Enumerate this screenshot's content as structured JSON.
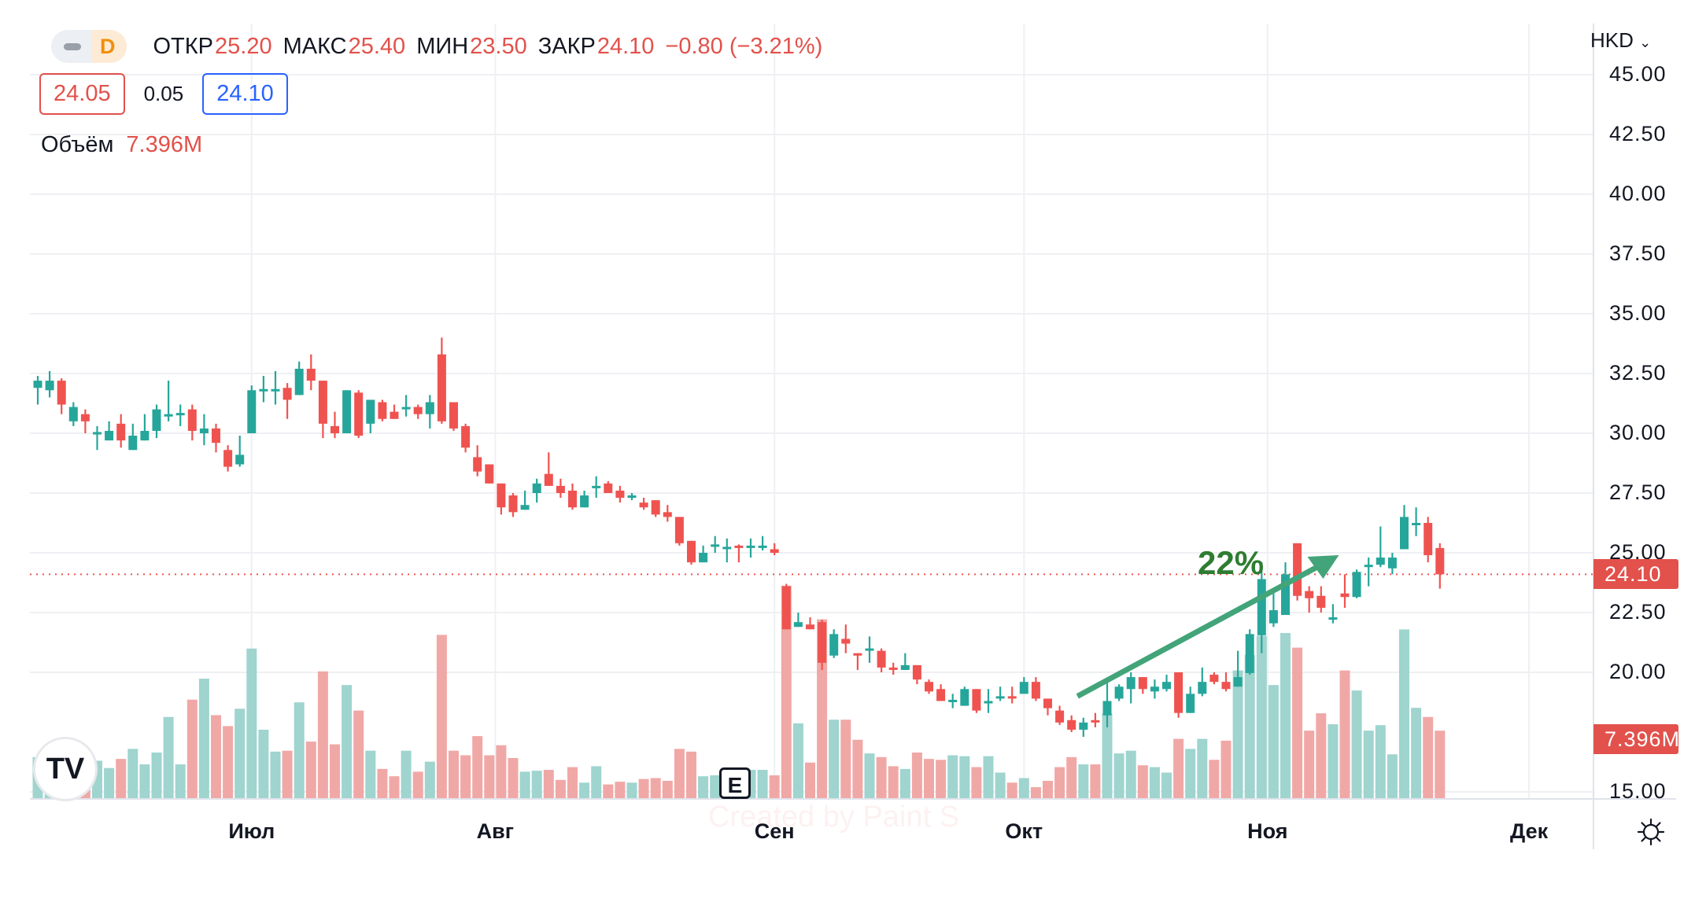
{
  "header": {
    "interval": "D",
    "open_label": "ОТКР",
    "open": "25.20",
    "high_label": "МАКС",
    "high": "25.40",
    "low_label": "МИН",
    "low": "23.50",
    "close_label": "ЗАКР",
    "close": "24.10",
    "change": "−0.80 (−3.21%)",
    "bid": "24.05",
    "spread": "0.05",
    "ask": "24.10",
    "volume_label": "Объём",
    "volume": "7.396M"
  },
  "currency": "HKD",
  "last_price_tag": "24.10",
  "last_volume_tag": "7.396M",
  "annotation": {
    "text": "22%"
  },
  "earnings_marker": "E",
  "logo": "TV",
  "watermark": "Created by Paint S",
  "colors": {
    "up": "#26a69a",
    "down": "#ef5350",
    "up_vol": "#9fd4cf",
    "down_vol": "#f0a8a6",
    "arrow": "#43a47a",
    "grid": "#eff0f3"
  },
  "chart_data": {
    "type": "candlestick",
    "ylabel": "HKD",
    "ylim": [
      15,
      45
    ],
    "yticks": [
      "45.00",
      "42.50",
      "40.00",
      "37.50",
      "35.00",
      "32.50",
      "30.00",
      "27.50",
      "25.00",
      "22.50",
      "20.00",
      "15.00"
    ],
    "ytick_values": [
      45,
      42.5,
      40,
      37.5,
      35,
      32.5,
      30,
      27.5,
      25,
      22.5,
      20,
      15
    ],
    "months": [
      {
        "label": "Июл",
        "index": 18
      },
      {
        "label": "Авг",
        "index": 38.5
      },
      {
        "label": "Сен",
        "index": 62
      },
      {
        "label": "Окт",
        "index": 83
      },
      {
        "label": "Ноя",
        "index": 103.5
      },
      {
        "label": "Дек",
        "index": 125.5
      }
    ],
    "last_price": 24.1,
    "arrow": {
      "from_index": 87.5,
      "from_price": 19.0,
      "to_index": 109.5,
      "to_price": 24.9
    },
    "earnings_index": 58,
    "candles_ohlcv": [
      [
        31.9,
        32.4,
        31.2,
        32.2,
        4.5
      ],
      [
        31.8,
        32.6,
        31.5,
        32.2,
        3.8
      ],
      [
        32.2,
        32.3,
        30.8,
        31.2,
        4
      ],
      [
        30.5,
        31.3,
        30.3,
        31.1,
        4
      ],
      [
        30.8,
        31.0,
        30.0,
        30.5,
        3.8
      ],
      [
        30.0,
        30.3,
        29.3,
        30.05,
        4.1
      ],
      [
        29.7,
        30.5,
        29.7,
        30.1,
        3.3
      ],
      [
        30.4,
        30.8,
        29.4,
        29.7,
        4.3
      ],
      [
        29.3,
        30.4,
        29.3,
        29.9,
        5.4
      ],
      [
        29.7,
        30.8,
        29.7,
        30.1,
        3.7
      ],
      [
        30.1,
        31.2,
        29.8,
        31.0,
        5
      ],
      [
        30.7,
        32.2,
        30.5,
        30.8,
        8.9
      ],
      [
        30.8,
        31.2,
        30.3,
        30.85,
        3.7
      ],
      [
        31.0,
        31.2,
        29.7,
        30.1,
        10.8
      ],
      [
        30.0,
        30.8,
        29.5,
        30.2,
        13.1
      ],
      [
        30.2,
        30.4,
        29.2,
        29.6,
        9.1
      ],
      [
        29.3,
        29.5,
        28.4,
        28.6,
        7.9
      ],
      [
        28.7,
        29.9,
        28.6,
        29.1,
        9.8
      ],
      [
        30.0,
        32.0,
        30.0,
        31.8,
        16.4
      ],
      [
        31.8,
        32.4,
        31.3,
        31.85,
        7.5
      ],
      [
        31.85,
        32.6,
        31.2,
        31.85,
        5.1
      ],
      [
        31.9,
        32.1,
        30.6,
        31.4,
        5.2
      ],
      [
        31.6,
        33.0,
        31.6,
        32.7,
        10.5
      ],
      [
        32.7,
        33.3,
        31.8,
        32.2,
        6.2
      ],
      [
        32.2,
        32.2,
        29.8,
        30.4,
        13.9
      ],
      [
        30.3,
        30.9,
        29.8,
        30.0,
        5.9
      ],
      [
        30.0,
        31.8,
        30.0,
        31.8,
        12.4
      ],
      [
        31.7,
        31.8,
        29.8,
        29.9,
        9.6
      ],
      [
        30.4,
        31.4,
        30.0,
        31.4,
        5.2
      ],
      [
        31.3,
        31.4,
        30.5,
        30.6,
        3.2
      ],
      [
        30.9,
        31.2,
        30.6,
        30.6,
        2.4
      ],
      [
        31.1,
        31.6,
        30.7,
        31.1,
        5.2
      ],
      [
        31.1,
        31.2,
        30.6,
        30.8,
        2.9
      ],
      [
        30.8,
        31.6,
        30.2,
        31.3,
        4
      ],
      [
        33.3,
        34.0,
        30.4,
        30.5,
        17.9
      ],
      [
        31.3,
        31.3,
        30.1,
        30.2,
        5.2
      ],
      [
        30.3,
        30.4,
        29.2,
        29.4,
        4.7
      ],
      [
        29.0,
        29.5,
        28.2,
        28.4,
        6.8
      ],
      [
        28.7,
        28.7,
        27.9,
        27.9,
        4.7
      ],
      [
        27.9,
        27.9,
        26.6,
        26.9,
        5.8
      ],
      [
        27.4,
        27.5,
        26.5,
        26.7,
        4.4
      ],
      [
        26.8,
        27.6,
        26.8,
        27.0,
        2.9
      ],
      [
        27.5,
        28.1,
        27.1,
        27.9,
        3
      ],
      [
        28.3,
        29.2,
        27.8,
        27.8,
        3.1
      ],
      [
        27.8,
        28.1,
        27.3,
        27.5,
        2
      ],
      [
        27.6,
        27.9,
        26.8,
        26.9,
        3.4
      ],
      [
        26.9,
        27.6,
        26.9,
        27.4,
        1.7
      ],
      [
        27.8,
        28.2,
        27.3,
        27.8,
        3.5
      ],
      [
        27.9,
        28.0,
        27.5,
        27.5,
        1.5
      ],
      [
        27.6,
        27.8,
        27.1,
        27.3,
        1.8
      ],
      [
        27.3,
        27.5,
        27.2,
        27.4,
        1.7
      ],
      [
        27.1,
        27.3,
        26.8,
        26.9,
        2.1
      ],
      [
        27.2,
        27.2,
        26.5,
        26.6,
        2.2
      ],
      [
        26.7,
        27.0,
        26.3,
        26.5,
        1.9
      ],
      [
        26.5,
        26.5,
        25.3,
        25.4,
        5.4
      ],
      [
        25.5,
        25.5,
        24.5,
        24.6,
        5.1
      ],
      [
        24.6,
        25.3,
        24.6,
        25.0,
        2.4
      ],
      [
        25.3,
        25.7,
        25.0,
        25.35,
        2.5
      ],
      [
        25.2,
        25.6,
        24.6,
        25.25,
        2.5
      ],
      [
        25.3,
        25.35,
        24.6,
        25.25,
        2.1
      ],
      [
        25.3,
        25.6,
        24.8,
        25.3,
        3.1
      ],
      [
        25.25,
        25.7,
        25.1,
        25.3,
        3.1
      ],
      [
        25.15,
        25.4,
        24.9,
        25.0,
        2.5
      ],
      [
        23.6,
        23.7,
        21.8,
        21.8,
        23.3
      ],
      [
        21.9,
        22.5,
        21.9,
        22.1,
        8.2
      ],
      [
        22.0,
        22.3,
        21.8,
        21.8,
        3.9
      ],
      [
        22.1,
        22.2,
        20.1,
        20.4,
        19.6
      ],
      [
        20.7,
        21.8,
        20.6,
        21.6,
        8.6
      ],
      [
        21.4,
        22.0,
        20.8,
        21.2,
        8.6
      ],
      [
        20.8,
        20.8,
        20.1,
        20.7,
        6.4
      ],
      [
        21.0,
        21.5,
        20.4,
        21.0,
        4.9
      ],
      [
        20.9,
        21.0,
        20.0,
        20.2,
        4.5
      ],
      [
        20.2,
        20.4,
        19.9,
        20.15,
        3.5
      ],
      [
        20.1,
        20.8,
        20.1,
        20.3,
        3.2
      ],
      [
        20.3,
        20.3,
        19.5,
        19.7,
        5
      ],
      [
        19.6,
        19.7,
        19.1,
        19.2,
        4.3
      ],
      [
        19.3,
        19.5,
        18.8,
        18.8,
        4.2
      ],
      [
        18.85,
        19.1,
        18.5,
        18.85,
        4.7
      ],
      [
        18.6,
        19.4,
        18.6,
        19.3,
        4.6
      ],
      [
        19.3,
        19.3,
        18.3,
        18.4,
        3.4
      ],
      [
        18.7,
        19.3,
        18.3,
        18.8,
        4.6
      ],
      [
        19.0,
        19.4,
        18.8,
        19.0,
        2.8
      ],
      [
        19.0,
        19.4,
        18.7,
        18.95,
        1.7
      ],
      [
        19.1,
        19.8,
        19.1,
        19.6,
        2.2
      ],
      [
        19.6,
        19.8,
        18.8,
        18.9,
        1.2
      ],
      [
        18.9,
        18.9,
        18.2,
        18.5,
        1.9
      ],
      [
        18.4,
        18.6,
        17.8,
        17.9,
        3.4
      ],
      [
        18.0,
        18.2,
        17.5,
        17.6,
        4.5
      ],
      [
        17.6,
        18.1,
        17.3,
        17.9,
        3.7
      ],
      [
        18.0,
        18.3,
        17.7,
        17.9,
        3.7
      ],
      [
        18.2,
        19.6,
        17.7,
        18.8,
        9.3
      ],
      [
        18.9,
        19.5,
        18.8,
        19.4,
        4.9
      ],
      [
        19.3,
        20.0,
        18.7,
        19.8,
        5.2
      ],
      [
        19.8,
        19.8,
        19.1,
        19.3,
        3.6
      ],
      [
        19.2,
        19.7,
        18.9,
        19.4,
        3.4
      ],
      [
        19.3,
        19.9,
        19.2,
        19.6,
        2.8
      ],
      [
        20.0,
        20.0,
        18.1,
        18.3,
        6.5
      ],
      [
        18.3,
        19.4,
        18.3,
        19.1,
        5.4
      ],
      [
        19.1,
        20.2,
        19.0,
        19.6,
        6.5
      ],
      [
        19.9,
        20.0,
        19.5,
        19.6,
        4.2
      ],
      [
        19.6,
        20.0,
        19.2,
        19.3,
        6.3
      ],
      [
        19.4,
        20.9,
        19.4,
        19.8,
        14.0
      ],
      [
        19.97,
        21.8,
        19.9,
        21.6,
        15.7
      ],
      [
        21.55,
        24.6,
        20.8,
        23.9,
        17.8
      ],
      [
        22.05,
        23.3,
        21.9,
        22.6,
        12.4
      ],
      [
        22.4,
        24.6,
        22.4,
        24.1,
        18.1
      ],
      [
        25.4,
        25.4,
        23.0,
        23.2,
        16.5
      ],
      [
        23.4,
        23.6,
        22.5,
        23.1,
        7.4
      ],
      [
        23.2,
        23.6,
        22.5,
        22.7,
        9.3
      ],
      [
        22.3,
        22.85,
        22.05,
        22.3,
        8.1
      ],
      [
        23.3,
        24.1,
        22.7,
        23.15,
        14
      ],
      [
        23.15,
        24.3,
        23.1,
        24.2,
        11.8
      ],
      [
        24.5,
        24.8,
        23.6,
        24.5,
        7.4
      ],
      [
        24.5,
        26.1,
        24.4,
        24.8,
        8
      ],
      [
        24.35,
        25.0,
        24.1,
        24.8,
        4.8
      ],
      [
        25.15,
        27.0,
        25.15,
        26.5,
        18.5
      ],
      [
        26.25,
        26.9,
        25.7,
        26.25,
        9.9
      ],
      [
        26.25,
        26.5,
        24.6,
        24.9,
        8.9
      ],
      [
        25.2,
        25.4,
        23.5,
        24.1,
        7.396
      ]
    ]
  }
}
